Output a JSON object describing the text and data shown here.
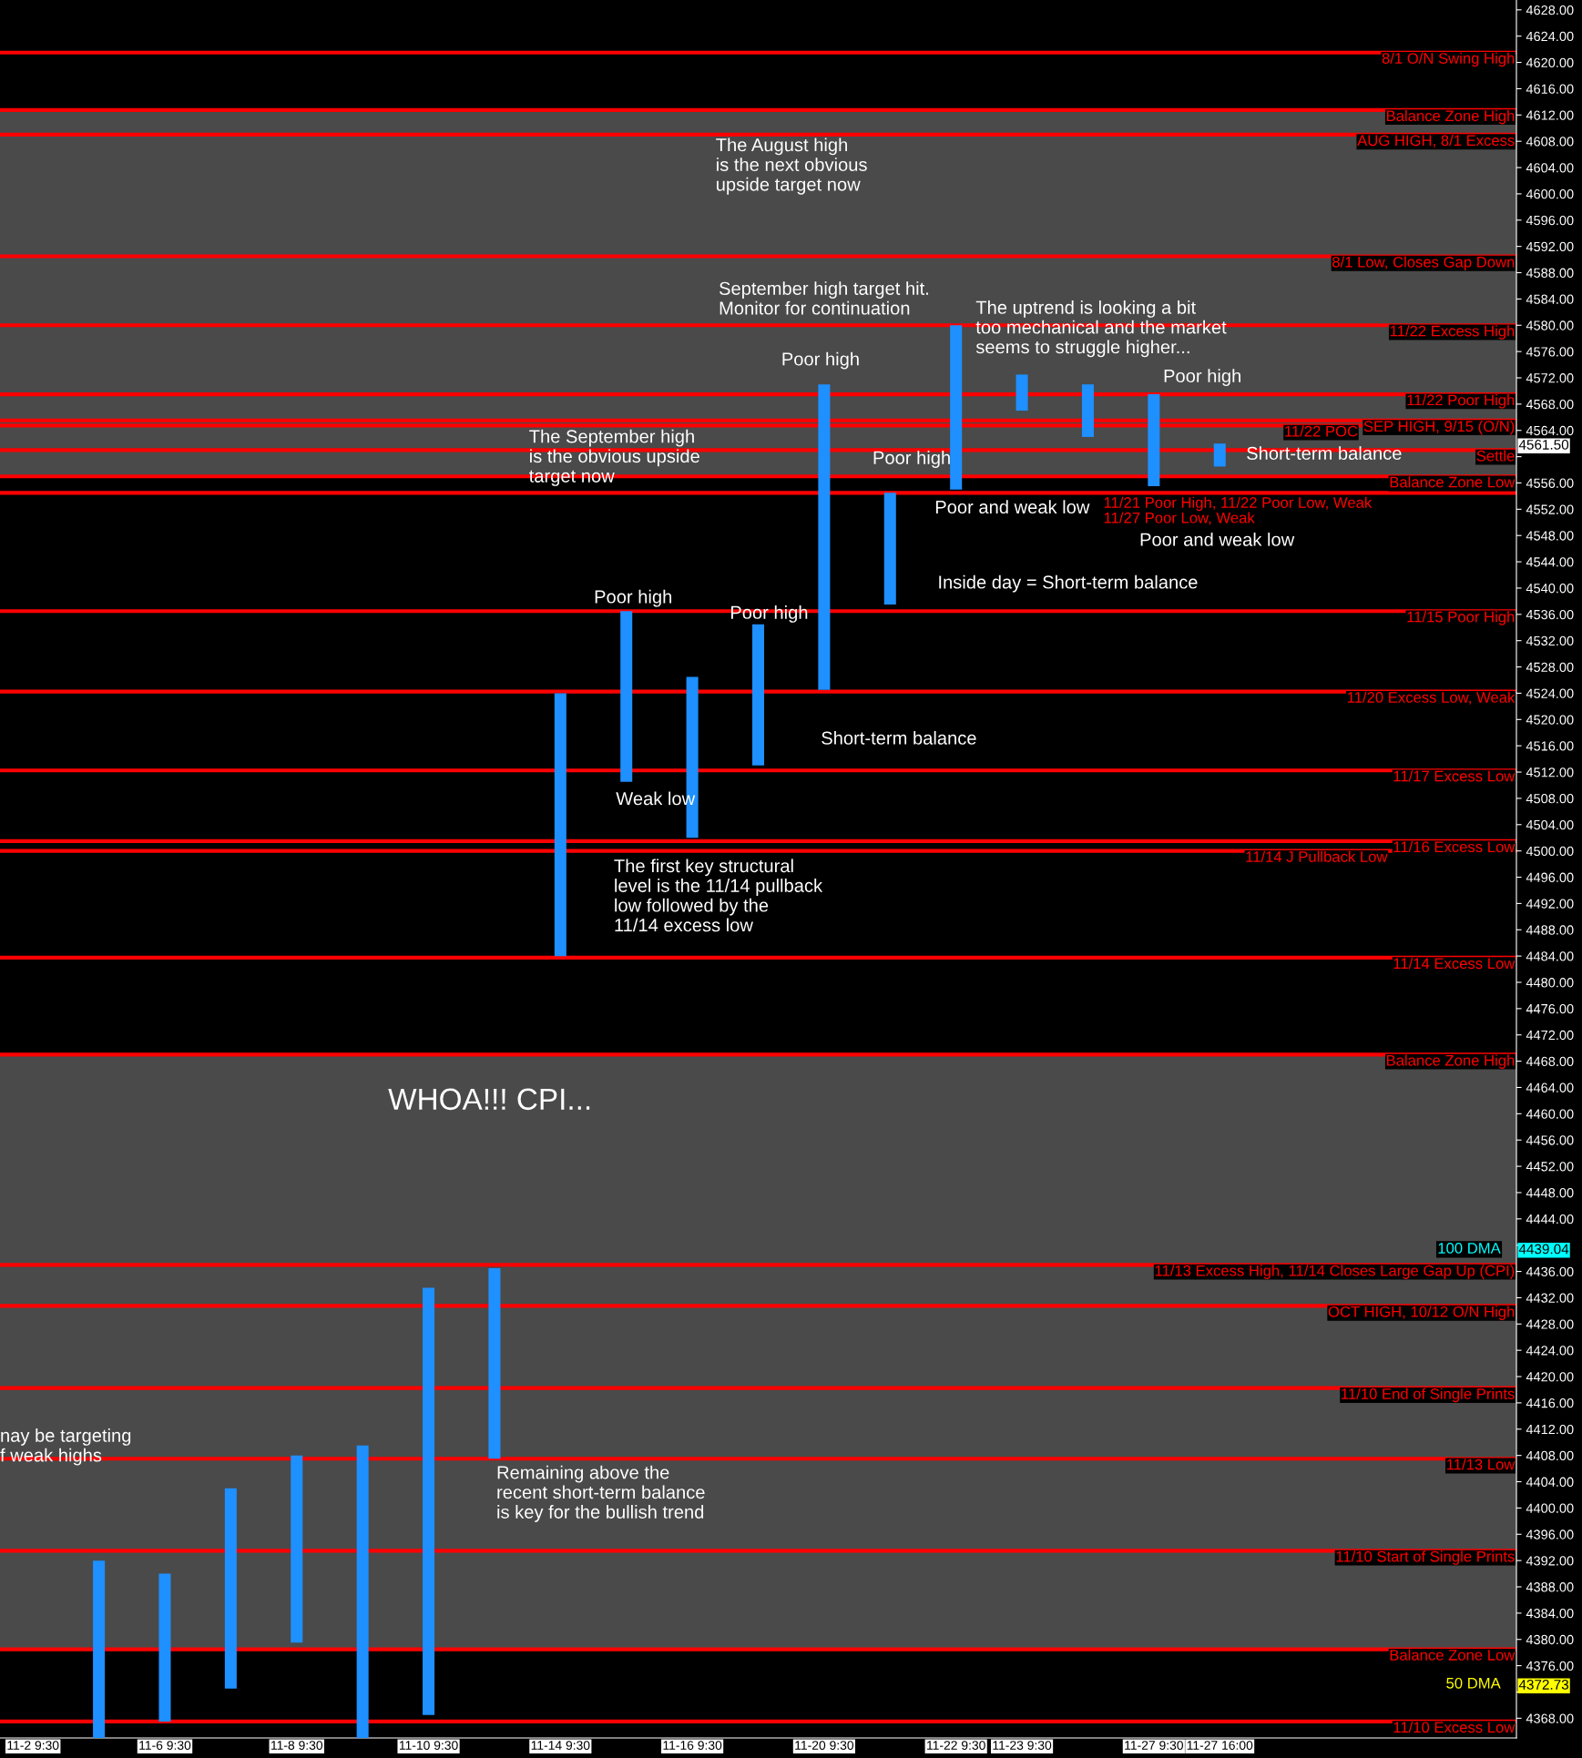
{
  "chart_data": {
    "type": "bar",
    "categories": [
      "11-2 9:30",
      null,
      "11-6 9:30",
      null,
      "11-8 9:30",
      null,
      "11-10 9:30",
      null,
      "11-14 9:30",
      null,
      "11-16 9:30",
      null,
      "11-20 9:30",
      null,
      "11-22 9:30",
      "11-23 9:30",
      null,
      "11-27 9:30",
      "11-27 16:00",
      null,
      null,
      null,
      null
    ],
    "base": [
      null,
      4365,
      4367.5,
      4372.5,
      4379.5,
      4365,
      4368.5,
      4407.5,
      4484,
      4510.5,
      4502,
      4513,
      4524.5,
      4537.5,
      4555,
      4567,
      4563,
      4555.5,
      4558.5,
      null,
      null,
      null,
      null
    ],
    "values": [
      null,
      27,
      22.5,
      30.5,
      28.5,
      44.5,
      65,
      29,
      40,
      26,
      24.5,
      21.5,
      46.5,
      17,
      25,
      5.5,
      8,
      14,
      3.5,
      null,
      null,
      null,
      null
    ],
    "color": "#1e90ff",
    "ylim": [
      4365,
      4629.5
    ],
    "yticks": [
      {
        "value": 4368,
        "label": "4368.00"
      },
      {
        "value": 4372,
        "label": null
      },
      {
        "value": 4376,
        "label": "4376.00"
      },
      {
        "value": 4380,
        "label": "4380.00"
      },
      {
        "value": 4384,
        "label": "4384.00"
      },
      {
        "value": 4388,
        "label": "4388.00"
      },
      {
        "value": 4392,
        "label": "4392.00"
      },
      {
        "value": 4396,
        "label": "4396.00"
      },
      {
        "value": 4400,
        "label": "4400.00"
      },
      {
        "value": 4404,
        "label": "4404.00"
      },
      {
        "value": 4408,
        "label": "4408.00"
      },
      {
        "value": 4412,
        "label": "4412.00"
      },
      {
        "value": 4416,
        "label": "4416.00"
      },
      {
        "value": 4420,
        "label": "4420.00"
      },
      {
        "value": 4424,
        "label": "4424.00"
      },
      {
        "value": 4428,
        "label": "4428.00"
      },
      {
        "value": 4432,
        "label": "4432.00"
      },
      {
        "value": 4436,
        "label": "4436.00"
      },
      {
        "value": 4440,
        "label": null
      },
      {
        "value": 4444,
        "label": "4444.00"
      },
      {
        "value": 4448,
        "label": "4448.00"
      },
      {
        "value": 4452,
        "label": "4452.00"
      },
      {
        "value": 4456,
        "label": "4456.00"
      },
      {
        "value": 4460,
        "label": "4460.00"
      },
      {
        "value": 4464,
        "label": "4464.00"
      },
      {
        "value": 4468,
        "label": "4468.00"
      },
      {
        "value": 4472,
        "label": "4472.00"
      },
      {
        "value": 4476,
        "label": "4476.00"
      },
      {
        "value": 4480,
        "label": "4480.00"
      },
      {
        "value": 4484,
        "label": "4484.00"
      },
      {
        "value": 4488,
        "label": "4488.00"
      },
      {
        "value": 4492,
        "label": "4492.00"
      },
      {
        "value": 4496,
        "label": "4496.00"
      },
      {
        "value": 4500,
        "label": "4500.00"
      },
      {
        "value": 4504,
        "label": "4504.00"
      },
      {
        "value": 4508,
        "label": "4508.00"
      },
      {
        "value": 4512,
        "label": "4512.00"
      },
      {
        "value": 4516,
        "label": "4516.00"
      },
      {
        "value": 4520,
        "label": "4520.00"
      },
      {
        "value": 4524,
        "label": "4524.00"
      },
      {
        "value": 4528,
        "label": "4528.00"
      },
      {
        "value": 4532,
        "label": "4532.00"
      },
      {
        "value": 4536,
        "label": "4536.00"
      },
      {
        "value": 4540,
        "label": "4540.00"
      },
      {
        "value": 4544,
        "label": "4544.00"
      },
      {
        "value": 4548,
        "label": "4548.00"
      },
      {
        "value": 4552,
        "label": "4552.00"
      },
      {
        "value": 4556,
        "label": "4556.00"
      },
      {
        "value": 4560,
        "label": null
      },
      {
        "value": 4564,
        "label": "4564.00"
      },
      {
        "value": 4568,
        "label": "4568.00"
      },
      {
        "value": 4572,
        "label": "4572.00"
      },
      {
        "value": 4576,
        "label": "4576.00"
      },
      {
        "value": 4580,
        "label": "4580.00"
      },
      {
        "value": 4584,
        "label": "4584.00"
      },
      {
        "value": 4588,
        "label": "4588.00"
      },
      {
        "value": 4592,
        "label": "4592.00"
      },
      {
        "value": 4596,
        "label": "4596.00"
      },
      {
        "value": 4600,
        "label": "4600.00"
      },
      {
        "value": 4604,
        "label": "4604.00"
      },
      {
        "value": 4608,
        "label": "4608.00"
      },
      {
        "value": 4612,
        "label": "4612.00"
      },
      {
        "value": 4616,
        "label": "4616.00"
      },
      {
        "value": 4620,
        "label": "4620.00"
      },
      {
        "value": 4624,
        "label": "4624.00"
      },
      {
        "value": 4628,
        "label": "4628.00"
      }
    ],
    "bands": [
      {
        "axis": "y",
        "from": 4557,
        "to": 4612.75,
        "color": "#4a4a4a"
      },
      {
        "axis": "y",
        "from": 4378.5,
        "to": 4469,
        "color": "#4a4a4a"
      }
    ],
    "ref_lines": [
      {
        "axis": "y",
        "value": 4621.5,
        "label": "8/1 O/N Swing High",
        "color": "#ff0000"
      },
      {
        "axis": "y",
        "value": 4612.75,
        "label": "Balance Zone High",
        "color": "#ff0000"
      },
      {
        "axis": "y",
        "value": 4609,
        "label": "AUG HIGH, 8/1 Excess",
        "color": "#ff0000"
      },
      {
        "axis": "y",
        "value": 4590.5,
        "label": "8/1 Low, Closes Gap Down",
        "color": "#ff0000"
      },
      {
        "axis": "y",
        "value": 4580,
        "label": "11/22 Excess High",
        "color": "#ff0000"
      },
      {
        "axis": "y",
        "value": 4569.5,
        "label": "11/22 Poor High",
        "color": "#ff0000"
      },
      {
        "axis": "y",
        "value": 4565.5,
        "label": "SEP HIGH, 9/15 (O/N)",
        "color": "#ff0000"
      },
      {
        "axis": "y",
        "value": 4564.75,
        "label": "11/22 POC",
        "color": "#ff0000"
      },
      {
        "axis": "y",
        "value": 4561,
        "label": "Settle",
        "color": "#ff0000"
      },
      {
        "axis": "y",
        "value": 4557,
        "label": "Balance Zone Low",
        "color": "#ff0000"
      },
      {
        "axis": "y",
        "value": 4554.5,
        "label": null,
        "color": "#ff0000"
      },
      {
        "axis": "y",
        "value": 4536.5,
        "label": "11/15 Poor High",
        "color": "#ff0000"
      },
      {
        "axis": "y",
        "value": 4524.25,
        "label": "11/20 Excess Low, Weak",
        "color": "#ff0000"
      },
      {
        "axis": "y",
        "value": 4512.25,
        "label": "11/17 Excess Low",
        "color": "#ff0000"
      },
      {
        "axis": "y",
        "value": 4501.5,
        "label": "11/16 Excess Low",
        "color": "#ff0000"
      },
      {
        "axis": "y",
        "value": 4500,
        "label": "11/14 J Pullback Low",
        "color": "#ff0000"
      },
      {
        "axis": "y",
        "value": 4483.75,
        "label": "11/14 Excess Low",
        "color": "#ff0000"
      },
      {
        "axis": "y",
        "value": 4469,
        "label": "Balance Zone High",
        "color": "#ff0000"
      },
      {
        "axis": "y",
        "value": 4437,
        "label": "11/13 Excess High, 11/14 Closes Large Gap Up (CPI)",
        "color": "#ff0000"
      },
      {
        "axis": "y",
        "value": 4430.75,
        "label": "OCT HIGH, 10/12 O/N High",
        "color": "#ff0000"
      },
      {
        "axis": "y",
        "value": 4418.25,
        "label": "11/10 End of Single Prints",
        "color": "#ff0000"
      },
      {
        "axis": "y",
        "value": 4407.5,
        "label": "11/13 Low",
        "color": "#ff0000"
      },
      {
        "axis": "y",
        "value": 4393.5,
        "label": "11/10 Start of Single Prints",
        "color": "#ff0000"
      },
      {
        "axis": "y",
        "value": 4378.5,
        "label": "Balance Zone Low",
        "color": "#ff0000"
      },
      {
        "axis": "y",
        "value": 4367.5,
        "label": "11/10 Excess Low",
        "color": "#ff0000"
      }
    ],
    "annotations": [
      "The August high\nis the next obvious\nupside target now",
      "September high target hit.\nMonitor for continuation",
      "The uptrend is looking a bit\ntoo mechanical and the market\nseems to struggle higher...",
      "Poor high",
      "Poor high",
      "The September high\nis the obvious upside\ntarget now",
      "Poor high",
      "Short-term balance",
      "Poor and weak low",
      "Poor and weak low",
      "Inside day = Short-term balance",
      "Poor high",
      "Poor high",
      "Short-term balance",
      "Weak low",
      "The first key structural\nlevel is the 11/14 pullback\nlow followed by the\n11/14 excess low",
      "WHOA!!! CPI...",
      "nay be targeting\nf weak highs",
      "Remaining above the\nrecent short-term balance\nis key for the bullish trend",
      {
        "text": "11/21 Poor High, 11/22 Poor Low, Weak\n11/27 Poor Low, Weak",
        "y": 4554.5
      },
      "100 DMA",
      "50 DMA",
      "4561.50",
      "4439.04",
      "4372.73"
    ],
    "grid": false
  }
}
